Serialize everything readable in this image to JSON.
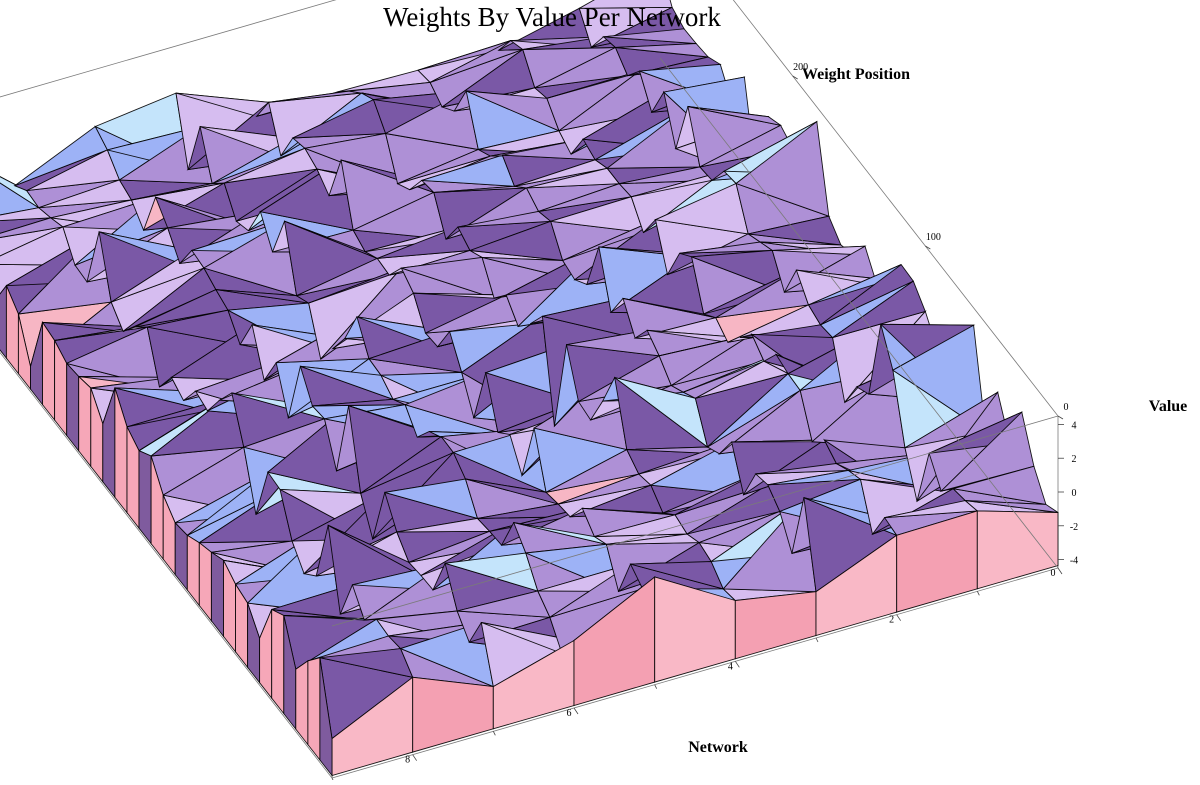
{
  "chart_data": {
    "type": "surface3d",
    "title": "Weights By Value Per Network",
    "x_axis": {
      "label": "Network",
      "range": [
        0,
        9
      ],
      "ticks": [
        "0",
        "2",
        "4",
        "6",
        "8"
      ]
    },
    "y_axis": {
      "label": "Weight Position",
      "range": [
        0,
        300
      ],
      "ticks": [
        "0",
        "100",
        "200"
      ]
    },
    "z_axis": {
      "label": "Value",
      "range": [
        -4.5,
        4.5
      ],
      "ticks": [
        "-4",
        "-2",
        "0",
        "2",
        "4"
      ]
    },
    "colors": {
      "pink": "#f9a8b6",
      "light_pink": "#fbd0dc",
      "lavender": "#d0b8ec",
      "purple": "#6e4c96",
      "blue": "#8aa2f4",
      "sky": "#bfe1fb"
    }
  }
}
